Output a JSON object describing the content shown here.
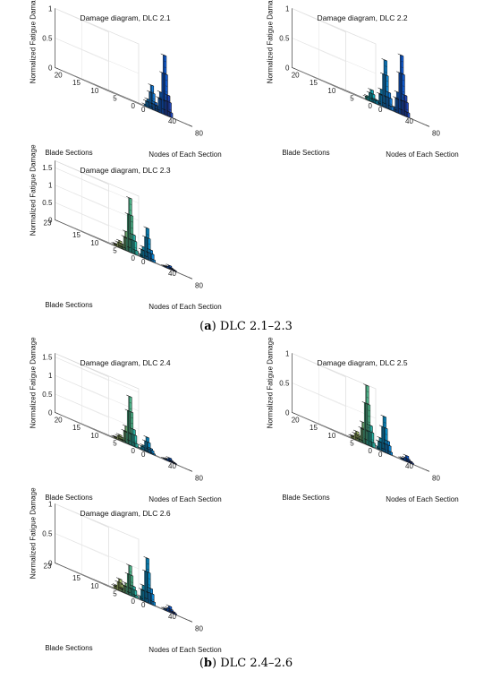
{
  "captions": [
    {
      "label": "a",
      "text": "DLC 2.1–2.3"
    },
    {
      "label": "b",
      "text": "DLC 2.4–2.6"
    }
  ],
  "chart_data": [
    {
      "type": "bar3d",
      "title": "Damage diagram, DLC 2.1",
      "zlabel": "Normalized Fatigue Damage",
      "ylabel": "Blade Sections",
      "xlabel": "Nodes of Each Section",
      "zticks": [
        "0",
        "0.5",
        "1"
      ],
      "zlim": [
        0,
        1
      ],
      "yticks": [
        "0",
        "5",
        "10",
        "15",
        "20"
      ],
      "ylim": [
        0,
        23
      ],
      "xticks": [
        "0",
        "40",
        "80"
      ],
      "xlim": [
        0,
        80
      ],
      "peaks": [
        {
          "section": 4,
          "node": 40,
          "value": 0.4,
          "width": 3
        },
        {
          "section": 2,
          "node": 48,
          "value": 1.0,
          "width": 3
        }
      ]
    },
    {
      "type": "bar3d",
      "title": "Damage diagram, DLC 2.2",
      "zlabel": "Normalized Fatigue Damage",
      "ylabel": "Blade Sections",
      "xlabel": "Nodes of Each Section",
      "zticks": [
        "0",
        "0.5",
        "1"
      ],
      "zlim": [
        0,
        1
      ],
      "yticks": [
        "0",
        "5",
        "10",
        "15",
        "20"
      ],
      "ylim": [
        0,
        23
      ],
      "xticks": [
        "0",
        "40",
        "80"
      ],
      "xlim": [
        0,
        80
      ],
      "peaks": [
        {
          "section": 8,
          "node": 36,
          "value": 0.2,
          "width": 3
        },
        {
          "section": 5,
          "node": 40,
          "value": 0.8,
          "width": 3
        },
        {
          "section": 2,
          "node": 48,
          "value": 1.0,
          "width": 3
        }
      ]
    },
    {
      "type": "bar3d",
      "title": "Damage diagram, DLC 2.3",
      "zlabel": "Normalized Fatigue Damage",
      "ylabel": "Blade Sections",
      "xlabel": "Nodes of Each Section",
      "zticks": [
        "0",
        "0.5",
        "1",
        "1.5"
      ],
      "zlim": [
        0,
        1.7
      ],
      "yticks": [
        "0",
        "5",
        "10",
        "15",
        "23"
      ],
      "ylim": [
        0,
        23
      ],
      "xticks": [
        "0",
        "40",
        "80"
      ],
      "xlim": [
        0,
        80
      ],
      "peaks": [
        {
          "section": 12,
          "node": 36,
          "value": 0.2,
          "width": 3
        },
        {
          "section": 10,
          "node": 40,
          "value": 1.55,
          "width": 3
        },
        {
          "section": 6,
          "node": 44,
          "value": 0.9,
          "width": 3
        },
        {
          "section": 2,
          "node": 56,
          "value": 0.1,
          "width": 2
        }
      ]
    },
    {
      "type": "bar3d",
      "title": "Damage diagram, DLC 2.4",
      "zlabel": "Normalized Fatigue Damage",
      "ylabel": "Blade Sections",
      "xlabel": "Nodes of Each Section",
      "zticks": [
        "0",
        "0.5",
        "1",
        "1.5"
      ],
      "zlim": [
        0,
        1.6
      ],
      "yticks": [
        "0",
        "5",
        "10",
        "15",
        "20"
      ],
      "ylim": [
        0,
        23
      ],
      "xticks": [
        "0",
        "40",
        "80"
      ],
      "xlim": [
        0,
        80
      ],
      "peaks": [
        {
          "section": 12,
          "node": 36,
          "value": 0.15,
          "width": 3
        },
        {
          "section": 10,
          "node": 40,
          "value": 1.3,
          "width": 3
        },
        {
          "section": 6,
          "node": 44,
          "value": 0.4,
          "width": 3
        },
        {
          "section": 2,
          "node": 56,
          "value": 0.1,
          "width": 2
        }
      ]
    },
    {
      "type": "bar3d",
      "title": "Damage diagram, DLC 2.5",
      "zlabel": "Normalized Fatigue Damage",
      "ylabel": "Blade Sections",
      "xlabel": "Nodes of Each Section",
      "zticks": [
        "0",
        "0.5",
        "1"
      ],
      "zlim": [
        0,
        1
      ],
      "yticks": [
        "0",
        "5",
        "10",
        "15",
        "20"
      ],
      "ylim": [
        0,
        23
      ],
      "xticks": [
        "0",
        "40",
        "80"
      ],
      "xlim": [
        0,
        80
      ],
      "peaks": [
        {
          "section": 12,
          "node": 36,
          "value": 0.15,
          "width": 3
        },
        {
          "section": 10,
          "node": 40,
          "value": 1.0,
          "width": 3
        },
        {
          "section": 6,
          "node": 44,
          "value": 0.6,
          "width": 3
        },
        {
          "section": 2,
          "node": 56,
          "value": 0.1,
          "width": 2
        }
      ]
    },
    {
      "type": "bar3d",
      "title": "Damage diagram, DLC 2.6",
      "zlabel": "Normalized Fatigue Damage",
      "ylabel": "Blade Sections",
      "xlabel": "Nodes of Each Section",
      "zticks": [
        "0",
        "0.5",
        "1"
      ],
      "zlim": [
        0,
        1
      ],
      "yticks": [
        "0",
        "5",
        "10",
        "15",
        "23"
      ],
      "ylim": [
        0,
        23
      ],
      "xticks": [
        "0",
        "40",
        "80"
      ],
      "xlim": [
        0,
        80
      ],
      "peaks": [
        {
          "section": 12,
          "node": 36,
          "value": 0.2,
          "width": 3
        },
        {
          "section": 10,
          "node": 40,
          "value": 0.5,
          "width": 3
        },
        {
          "section": 6,
          "node": 44,
          "value": 0.75,
          "width": 3
        },
        {
          "section": 2,
          "node": 56,
          "value": 0.1,
          "width": 2
        }
      ]
    }
  ]
}
